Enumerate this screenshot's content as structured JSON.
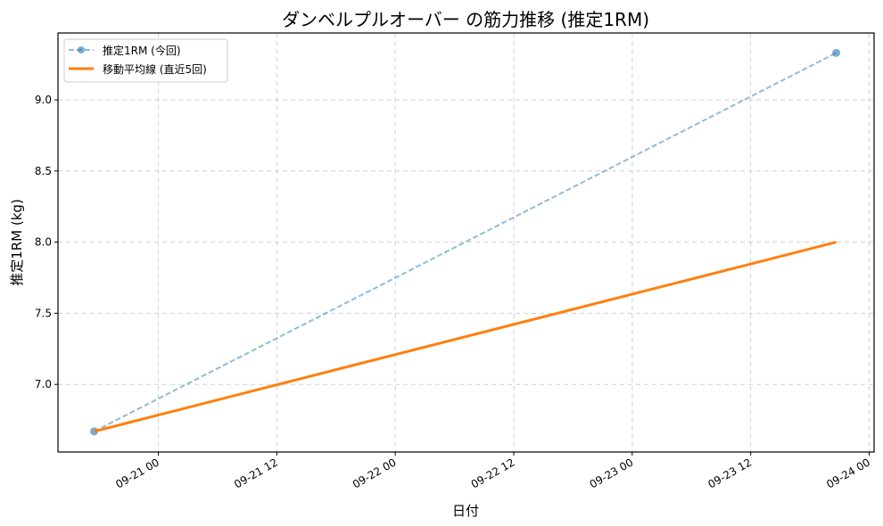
{
  "chart_data": {
    "type": "line",
    "title": "ダンベルプルオーバー の筋力推移 (推定1RM)",
    "xlabel": "日付",
    "ylabel": "推定1RM (kg)",
    "xlim": [
      "09-20 13:50",
      "09-24 00:30"
    ],
    "ylim": [
      6.525,
      9.47
    ],
    "x_ticks": [
      "09-21 00",
      "09-21 12",
      "09-22 00",
      "09-22 12",
      "09-23 00",
      "09-23 12",
      "09-24 00"
    ],
    "y_ticks": [
      7.0,
      7.5,
      8.0,
      8.5,
      9.0
    ],
    "y_tick_labels": [
      "7.0",
      "7.5",
      "8.0",
      "8.5",
      "9.0"
    ],
    "grid": true,
    "legend_position": "top-left",
    "series": [
      {
        "name": "推定1RM (今回)",
        "x": [
          "09-20 17:30",
          "09-23 20:40"
        ],
        "values": [
          6.67,
          9.33
        ],
        "color": "#1f77b4",
        "style": "dashed",
        "markers": true
      },
      {
        "name": "移動平均線 (直近5回)",
        "x": [
          "09-20 17:30",
          "09-23 20:40"
        ],
        "values": [
          6.67,
          8.0
        ],
        "color": "#ff7f0e",
        "style": "solid",
        "markers": false
      }
    ]
  }
}
